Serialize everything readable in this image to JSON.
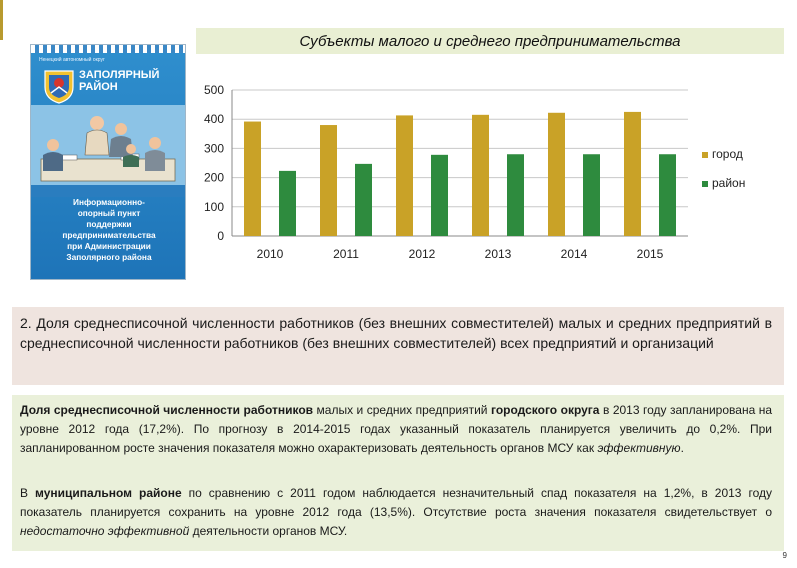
{
  "page": {
    "title": "Субъекты малого и среднего предпринимательства",
    "page_number": "9"
  },
  "brochure": {
    "header": "Ненецкий автономный округ",
    "name": "ЗАПОЛЯРНЫЙ\nРАЙОН",
    "body": "Информационно-\nопорный пункт\nподдержки\nпредпринимательства\nпри Администрации\nЗаполярного района"
  },
  "chart_data": {
    "type": "bar",
    "categories": [
      "2010",
      "2011",
      "2012",
      "2013",
      "2014",
      "2015"
    ],
    "series": [
      {
        "name": "город",
        "color": "#c9a227",
        "values": [
          392,
          380,
          413,
          415,
          422,
          425
        ]
      },
      {
        "name": "район",
        "color": "#2e8b3e",
        "values": [
          223,
          247,
          278,
          280,
          280,
          280
        ]
      }
    ],
    "yticks": [
      0,
      100,
      200,
      300,
      400,
      500
    ],
    "ylim": [
      0,
      500
    ],
    "grid": true,
    "legend": "right"
  },
  "section": {
    "heading_number": "2.",
    "heading": "Доля среднесписочной численности работников (без внешних совместителей) малых и средних предприятий в среднесписочной численности работников (без внешних совместителей) всех предприятий и организаций"
  },
  "paragraph1": {
    "bold1": "Доля среднесписочной численности работников",
    "text1": " малых и средних предприятий ",
    "bold2": "городского округа",
    "text2": " в 2013 году запланирована на уровне 2012 года (17,2%). По прогнозу в 2014-2015 годах указанный показатель планируется увеличить до 0,2%. При запланированном росте значения показателя можно охарактеризовать деятельность органов МСУ как ",
    "italic": "эффективную",
    "end": "."
  },
  "paragraph2": {
    "text1": "В ",
    "bold": "муниципальном районе",
    "text2": " по сравнению с 2011 годом наблюдается незначительный спад показателя на 1,2%, в 2013 году показатель планируется сохранить на уровне 2012 года (13,5%). Отсутствие роста значения показателя свидетельствует о ",
    "italic": "недостаточно эффективной",
    "end": " деятельности органов МСУ."
  }
}
